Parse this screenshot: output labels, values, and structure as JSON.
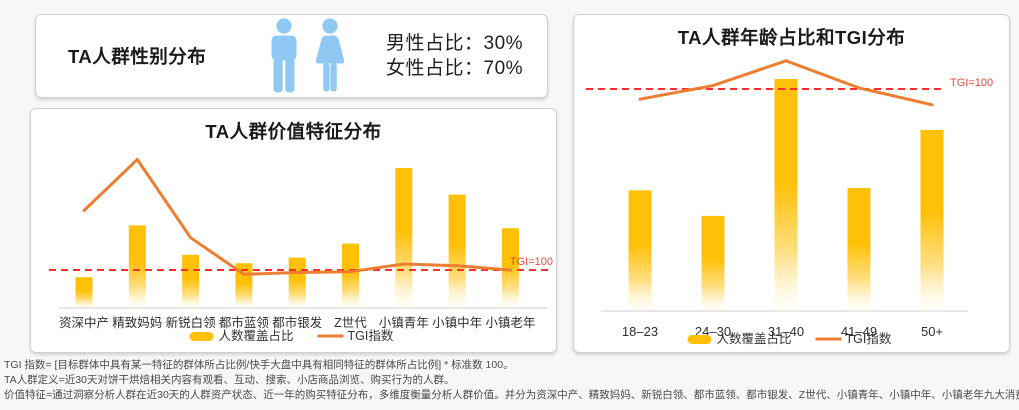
{
  "colors": {
    "bar_top": "#FFC008",
    "bar_fade": "#FFF3CF",
    "tgi_line": "#ED7D31",
    "reference_line": "#FF2D2D",
    "reference_label": "#E8453C",
    "icon_blue": "#8FC9F3",
    "axis_text": "#2e2e2e",
    "legend_text": "#333333"
  },
  "icons": {
    "male": "male-person-icon",
    "female": "female-person-icon"
  },
  "gender_panel": {
    "title": "TA人群性别分布",
    "male_stat": "男性占比：30%",
    "female_stat": "女性占比：70%"
  },
  "chart_data": [
    {
      "id": "value-traits",
      "type": "bar+line",
      "title": "TA人群价值特征分布",
      "categories": [
        "资深中产",
        "精致妈妈",
        "新锐白领",
        "都市蓝领",
        "都市银发",
        "Z世代",
        "小镇青年",
        "小镇中年",
        "小镇老年"
      ],
      "series": [
        {
          "name": "人数覆盖占比",
          "type": "bar",
          "unit": "relative_pct_of_max",
          "values": [
            22,
            59,
            38,
            32,
            36,
            46,
            100,
            81,
            57
          ]
        },
        {
          "name": "TGI指数",
          "type": "line",
          "unit": "TGI_estimated",
          "values": [
            170,
            230,
            138,
            95,
            97,
            98,
            107,
            105,
            100
          ]
        }
      ],
      "reference_line": {
        "label": "TGI=100",
        "value": 100
      },
      "legend_position": "bottom",
      "grid": "off"
    },
    {
      "id": "age-tgi",
      "type": "bar+line",
      "title": "TA人群年龄占比和TGI分布",
      "categories": [
        "18–23",
        "24–30",
        "31–40",
        "41–49",
        "50+"
      ],
      "series": [
        {
          "name": "人数覆盖占比",
          "type": "bar",
          "unit": "relative_pct_of_max",
          "values": [
            52,
            41,
            100,
            53,
            78
          ]
        },
        {
          "name": "TGI指数",
          "type": "line",
          "unit": "TGI_estimated",
          "values": [
            91,
            103,
            125,
            101,
            86
          ]
        }
      ],
      "reference_line": {
        "label": "TGI=100",
        "value": 100
      },
      "legend_position": "bottom",
      "grid": "off"
    }
  ],
  "footnotes": [
    "TGI 指数= [目标群体中具有某一特征的群体所占比例/快手大盘中具有相同特征的群体所占比例] * 标准数 100。",
    "TA人群定义=近30天对饼干烘焙相关内容有观看、互动、搜索、小店商品浏览、购买行为的人群。",
    "价值特征=通过洞察分析人群在近30天的人群资产状态、近一年的购买特征分布，多维度衡量分析人群价值。并分为资深中产、精致妈妈、新锐白领、都市蓝领、都市银发、Z世代、小镇青年、小镇中年、小镇老年九大消费人群。"
  ]
}
